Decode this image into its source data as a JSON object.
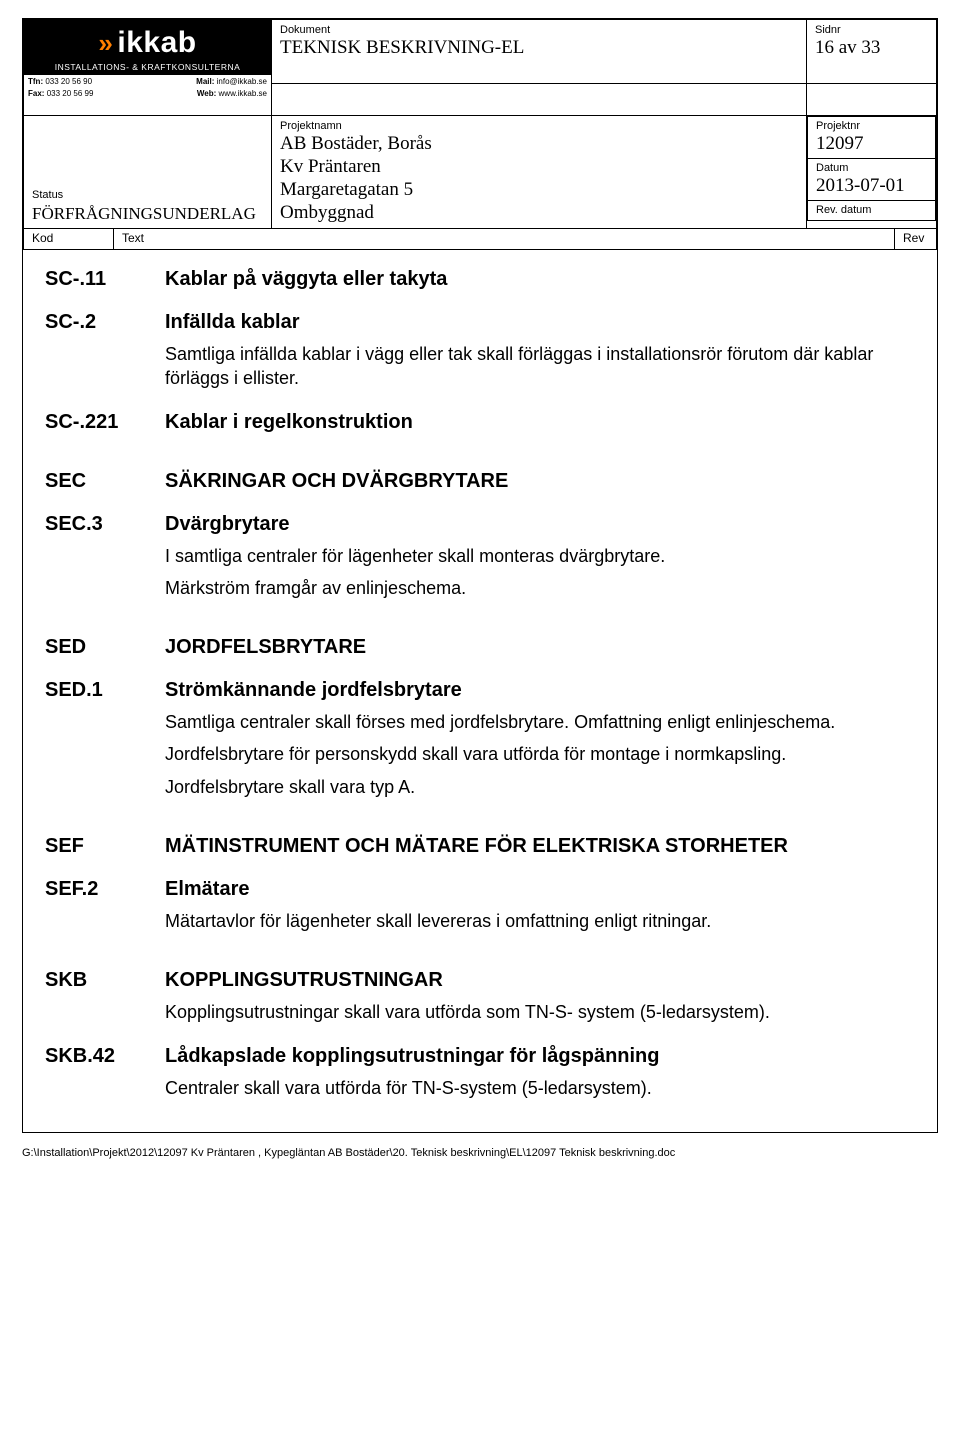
{
  "header": {
    "dokument_label": "Dokument",
    "dokument_value": "TEKNISK BESKRIVNING-EL",
    "sidnr_label": "Sidnr",
    "sidnr_value": "16 av 33",
    "projektnamn_label": "Projektnamn",
    "projektnamn_lines": [
      "AB Bostäder, Borås",
      "Kv Präntaren",
      "Margaretagatan 5",
      "Ombyggnad"
    ],
    "projektnr_label": "Projektnr",
    "projektnr_value": "12097",
    "datum_label": "Datum",
    "datum_value": "2013-07-01",
    "revdatum_label": "Rev. datum",
    "revdatum_value": "",
    "status_label": "Status",
    "status_value": "FÖRFRÅGNINGSUNDERLAG",
    "kod_label": "Kod",
    "text_label": "Text",
    "rev_label": "Rev",
    "logo": {
      "name": "ikkab",
      "sub": "INSTALLATIONS- & KRAFTKONSULTERNA",
      "tfn_label": "Tfn:",
      "tfn": "033 20 56 90",
      "mail_label": "Mail:",
      "mail": "info@ikkab.se",
      "fax_label": "Fax:",
      "fax": "033 20 56 99",
      "web_label": "Web:",
      "web": "www.ikkab.se"
    }
  },
  "sections": [
    {
      "code": "SC-.11",
      "title": "Kablar på väggyta eller takyta",
      "paras": []
    },
    {
      "code": "SC-.2",
      "title": "Infällda kablar",
      "paras": [
        "Samtliga infällda kablar i vägg eller tak skall förläggas i installationsrör förutom där kablar förläggs i ellister."
      ]
    },
    {
      "code": "SC-.221",
      "title": "Kablar i regelkonstruktion",
      "paras": [],
      "gap_after": true
    },
    {
      "code": "SEC",
      "title": "SÄKRINGAR OCH DVÄRGBRYTARE",
      "paras": []
    },
    {
      "code": "SEC.3",
      "title": "Dvärgbrytare",
      "paras": [
        "I samtliga centraler för lägenheter skall monteras dvärgbrytare.",
        "Märkström framgår av enlinjeschema."
      ],
      "gap_after": true
    },
    {
      "code": "SED",
      "title": "JORDFELSBRYTARE",
      "paras": []
    },
    {
      "code": "SED.1",
      "title": "Strömkännande jordfelsbrytare",
      "paras": [
        "Samtliga centraler skall förses med jordfelsbrytare. Omfattning enligt enlinjeschema.",
        "Jordfelsbrytare för personskydd skall vara utförda för montage i normkapsling.",
        "Jordfelsbrytare skall vara typ A."
      ],
      "gap_after": true
    },
    {
      "code": "SEF",
      "title": "MÄTINSTRUMENT OCH MÄTARE FÖR ELEKTRISKA STORHETER",
      "paras": []
    },
    {
      "code": "SEF.2",
      "title": "Elmätare",
      "paras": [
        "Mätartavlor för lägenheter skall levereras i omfattning enligt ritningar."
      ],
      "gap_after": true
    },
    {
      "code": "SKB",
      "title": "KOPPLINGSUTRUSTNINGAR",
      "paras": [
        "Kopplingsutrustningar skall vara utförda som TN-S- system (5-ledarsystem)."
      ]
    },
    {
      "code": "SKB.42",
      "title": "Lådkapslade kopplingsutrustningar för lågspänning",
      "paras": [
        "Centraler skall vara utförda för TN-S-system (5-ledarsystem)."
      ]
    }
  ],
  "footer": "G:\\Installation\\Projekt\\2012\\12097 Kv Präntaren , Kypegläntan AB Bostäder\\20. Teknisk beskrivning\\EL\\12097 Teknisk beskrivning.doc",
  "colors": {
    "text": "#000000",
    "background": "#ffffff",
    "accent": "#ff7f00"
  },
  "fonts": {
    "body": "Arial",
    "header_values": "Times New Roman",
    "title_size_pt": 15,
    "body_size_pt": 13,
    "label_size_pt": 8,
    "footer_size_pt": 8
  }
}
